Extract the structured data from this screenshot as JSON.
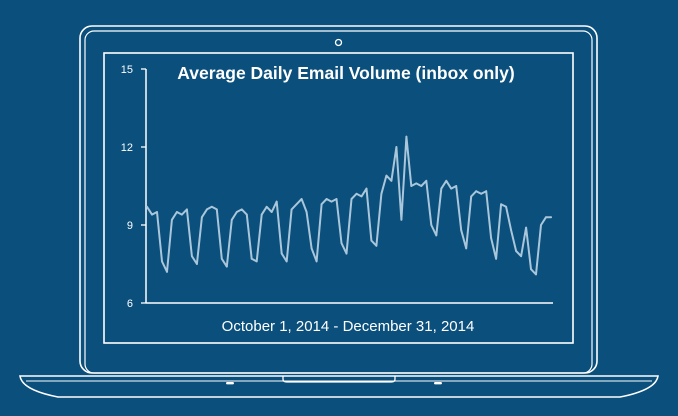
{
  "colors": {
    "background": "#0b4f7c",
    "outline": "#ffffff",
    "series_line": "#a9c6da"
  },
  "icons": {
    "camera": "camera-dot-icon"
  },
  "chart_data": {
    "type": "line",
    "title": "Average Daily Email Volume (inbox only)",
    "xlabel": "October 1, 2014 - December 31, 2014",
    "ylabel": "",
    "ylim": [
      6,
      15
    ],
    "yticks": [
      6,
      9,
      12,
      15
    ],
    "x_range": [
      "2014-10-01",
      "2014-12-31"
    ],
    "grid": false,
    "series": [
      {
        "values": [
          9.7,
          9.4,
          9.5,
          7.6,
          7.2,
          9.2,
          9.5,
          9.4,
          9.6,
          7.8,
          7.5,
          9.3,
          9.6,
          9.7,
          9.6,
          7.7,
          7.4,
          9.2,
          9.5,
          9.6,
          9.4,
          7.7,
          7.6,
          9.4,
          9.7,
          9.5,
          9.9,
          7.9,
          7.6,
          9.6,
          9.8,
          10.0,
          9.5,
          8.1,
          7.6,
          9.8,
          10.0,
          9.9,
          10.0,
          8.3,
          7.9,
          10.0,
          10.2,
          10.1,
          10.4,
          8.4,
          8.2,
          10.2,
          10.9,
          10.7,
          12.0,
          9.2,
          12.4,
          10.5,
          10.6,
          10.5,
          10.7,
          9.0,
          8.6,
          10.4,
          10.7,
          10.4,
          10.5,
          8.8,
          8.1,
          10.1,
          10.3,
          10.2,
          10.3,
          8.5,
          7.7,
          9.8,
          9.7,
          8.8,
          8.0,
          7.8,
          8.9,
          7.3,
          7.1,
          9.0,
          9.3,
          9.3
        ]
      }
    ]
  }
}
